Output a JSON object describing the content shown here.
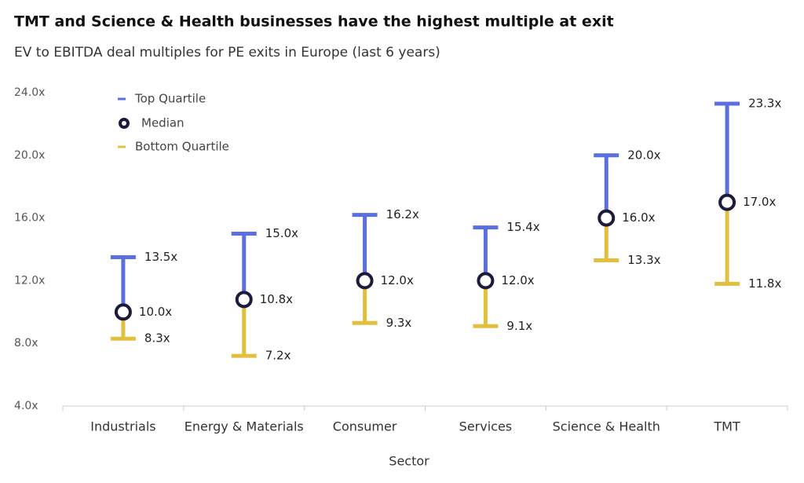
{
  "chart_data": {
    "type": "quartile-range",
    "title": "TMT and Science & Health businesses have the highest multiple at exit",
    "subtitle": "EV to EBITDA deal multiples for PE exits in Europe (last 6 years)",
    "x_label": "Sector",
    "categories": [
      "Industrials",
      "Energy & Materials",
      "Consumer",
      "Services",
      "Science & Health",
      "TMT"
    ],
    "series": [
      {
        "name": "Top Quartile",
        "color": "#5a6fe0",
        "values": [
          13.5,
          15.0,
          16.2,
          15.4,
          20.0,
          23.3
        ],
        "value_labels": [
          "13.5x",
          "15.0x",
          "16.2x",
          "15.4x",
          "20.0x",
          "23.3x"
        ]
      },
      {
        "name": "Median",
        "color": "#1d1b3c",
        "values": [
          10.0,
          10.8,
          12.0,
          12.0,
          16.0,
          17.0
        ],
        "value_labels": [
          "10.0x",
          "10.8x",
          "12.0x",
          "12.0x",
          "16.0x",
          "17.0x"
        ]
      },
      {
        "name": "Bottom Quartile",
        "color": "#e2c03e",
        "values": [
          8.3,
          7.2,
          9.3,
          9.1,
          13.3,
          11.8
        ],
        "value_labels": [
          "8.3x",
          "7.2x",
          "9.3x",
          "9.1x",
          "13.3x",
          "11.8x"
        ]
      }
    ],
    "ylim": [
      4,
      24
    ],
    "yticks": [
      {
        "value": 4,
        "label": "4.0x"
      },
      {
        "value": 8,
        "label": "8.0x"
      },
      {
        "value": 12,
        "label": "12.0x"
      },
      {
        "value": 16,
        "label": "16.0x"
      },
      {
        "value": 20,
        "label": "20.0x"
      },
      {
        "value": 24,
        "label": "24.0x"
      }
    ],
    "legend": "upper left"
  }
}
